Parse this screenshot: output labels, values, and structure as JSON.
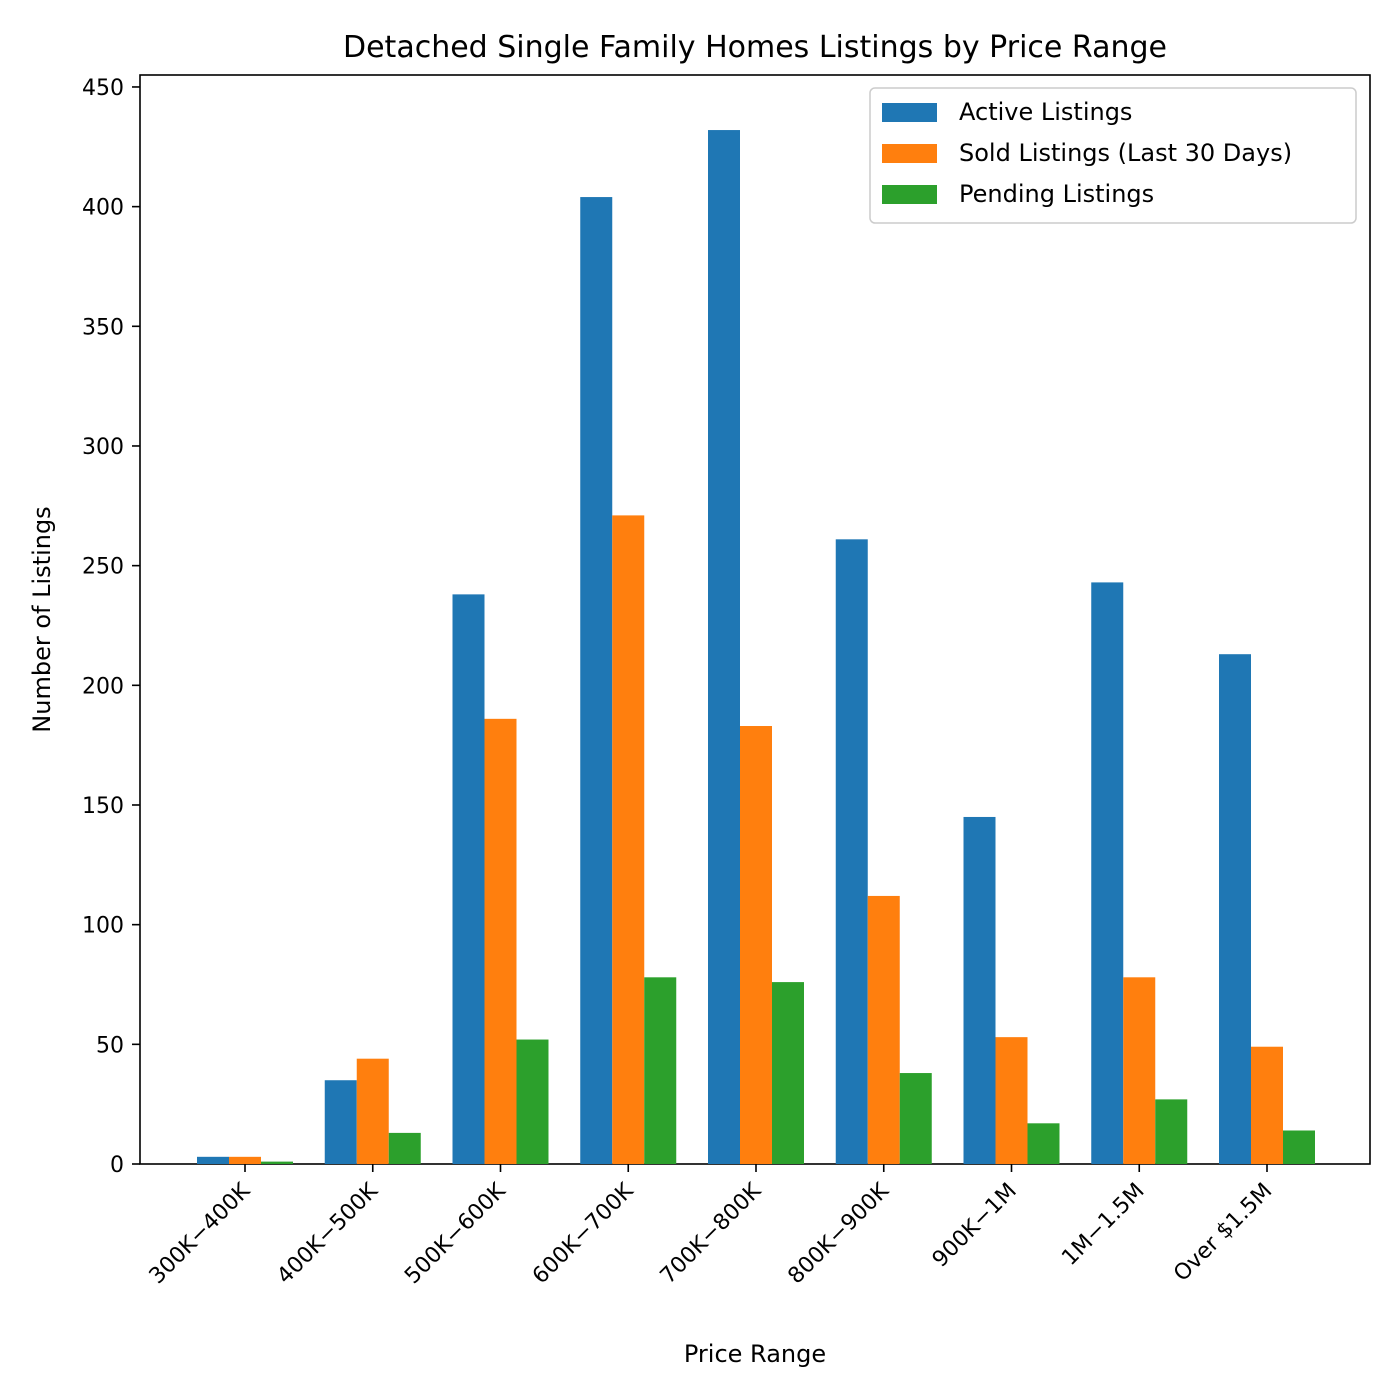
{
  "chart_data": {
    "type": "bar",
    "title": "Detached Single Family Homes Listings by Price Range",
    "xlabel": "Price Range",
    "ylabel": "Number of Listings",
    "ylim": [
      0,
      455
    ],
    "yticks": [
      0,
      50,
      100,
      150,
      200,
      250,
      300,
      350,
      400,
      450
    ],
    "grid": false,
    "legend_position": "top-right",
    "categories": [
      "300K−400K",
      "400K−500K",
      "500K−600K",
      "600K−700K",
      "700K−800K",
      "800K−900K",
      "900K−1M",
      "1M−1.5M",
      "Over $1.5M"
    ],
    "series": [
      {
        "name": "Active Listings",
        "color": "#1f77b4",
        "values": [
          3,
          35,
          238,
          404,
          432,
          261,
          145,
          243,
          213
        ]
      },
      {
        "name": "Sold Listings (Last 30 Days)",
        "color": "#ff7f0e",
        "values": [
          3,
          44,
          186,
          271,
          183,
          112,
          53,
          78,
          49
        ]
      },
      {
        "name": "Pending Listings",
        "color": "#2ca02c",
        "values": [
          1,
          13,
          52,
          78,
          76,
          38,
          17,
          27,
          14
        ]
      }
    ]
  }
}
